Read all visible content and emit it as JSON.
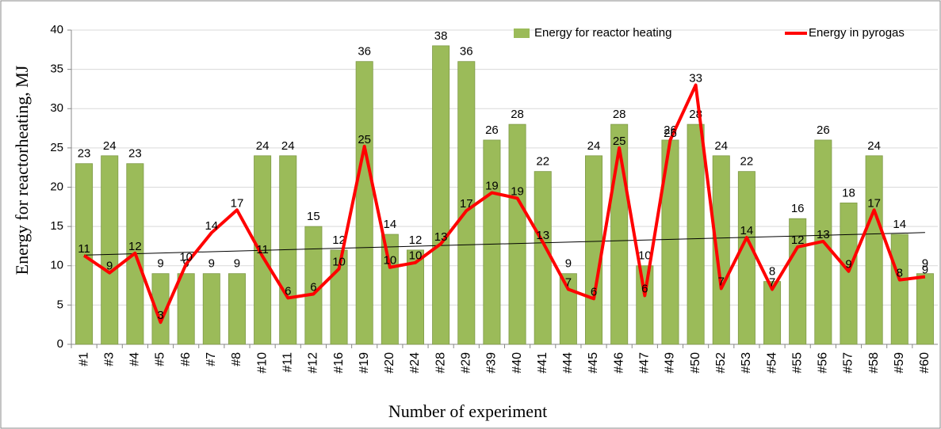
{
  "chart_data": {
    "type": "bar_line",
    "ylabel": "Energy for reactorheating, MJ",
    "xlabel": "Number of experiment",
    "categories": [
      "#1",
      "#3",
      "#4",
      "#5",
      "#6",
      "#7",
      "#8",
      "#10",
      "#11",
      "#12",
      "#16",
      "#19",
      "#20",
      "#24",
      "#28",
      "#29",
      "#39",
      "#40",
      "#41",
      "#44",
      "#45",
      "#46",
      "#47",
      "#49",
      "#50",
      "#52",
      "#53",
      "#54",
      "#55",
      "#56",
      "#57",
      "#58",
      "#59",
      "#60"
    ],
    "series": [
      {
        "name": "Energy for reactor heating",
        "type": "bar",
        "color": "#9bbb59",
        "values": [
          23,
          24,
          23,
          9,
          9,
          9,
          9,
          24,
          24,
          15,
          12,
          36,
          14,
          12,
          38,
          36,
          26,
          28,
          22,
          9,
          24,
          28,
          10,
          26,
          28,
          24,
          22,
          8,
          16,
          26,
          18,
          24,
          14,
          9
        ]
      },
      {
        "name": "Energy in pyrogas",
        "type": "line",
        "color": "#ff0000",
        "trendline": true,
        "values": [
          11.3,
          9.1,
          11.6,
          2.8,
          10.2,
          14.2,
          17.1,
          11.2,
          5.9,
          6.4,
          9.6,
          25.2,
          9.8,
          10.4,
          12.8,
          17.0,
          19.3,
          18.6,
          13.0,
          7.0,
          5.8,
          25.0,
          6.2,
          26.0,
          33.0,
          7.1,
          13.6,
          7.0,
          12.4,
          13.1,
          9.3,
          17.1,
          8.2,
          8.6
        ],
        "value_labels": [
          "11",
          "9",
          "12",
          "3",
          "10",
          "14",
          "17",
          "11",
          "6",
          "6",
          "10",
          "25",
          "10",
          "10",
          "13",
          "17",
          "19",
          "19",
          "13",
          "7",
          "6",
          "25",
          "6",
          "26",
          "33",
          "7",
          "14",
          "7",
          "12",
          "13",
          "9",
          "17",
          "8",
          "9"
        ]
      }
    ],
    "ylim": [
      0,
      40
    ],
    "yticks": [
      0,
      5,
      10,
      15,
      20,
      25,
      30,
      35,
      40
    ],
    "grid": true,
    "legend": "top-right"
  }
}
